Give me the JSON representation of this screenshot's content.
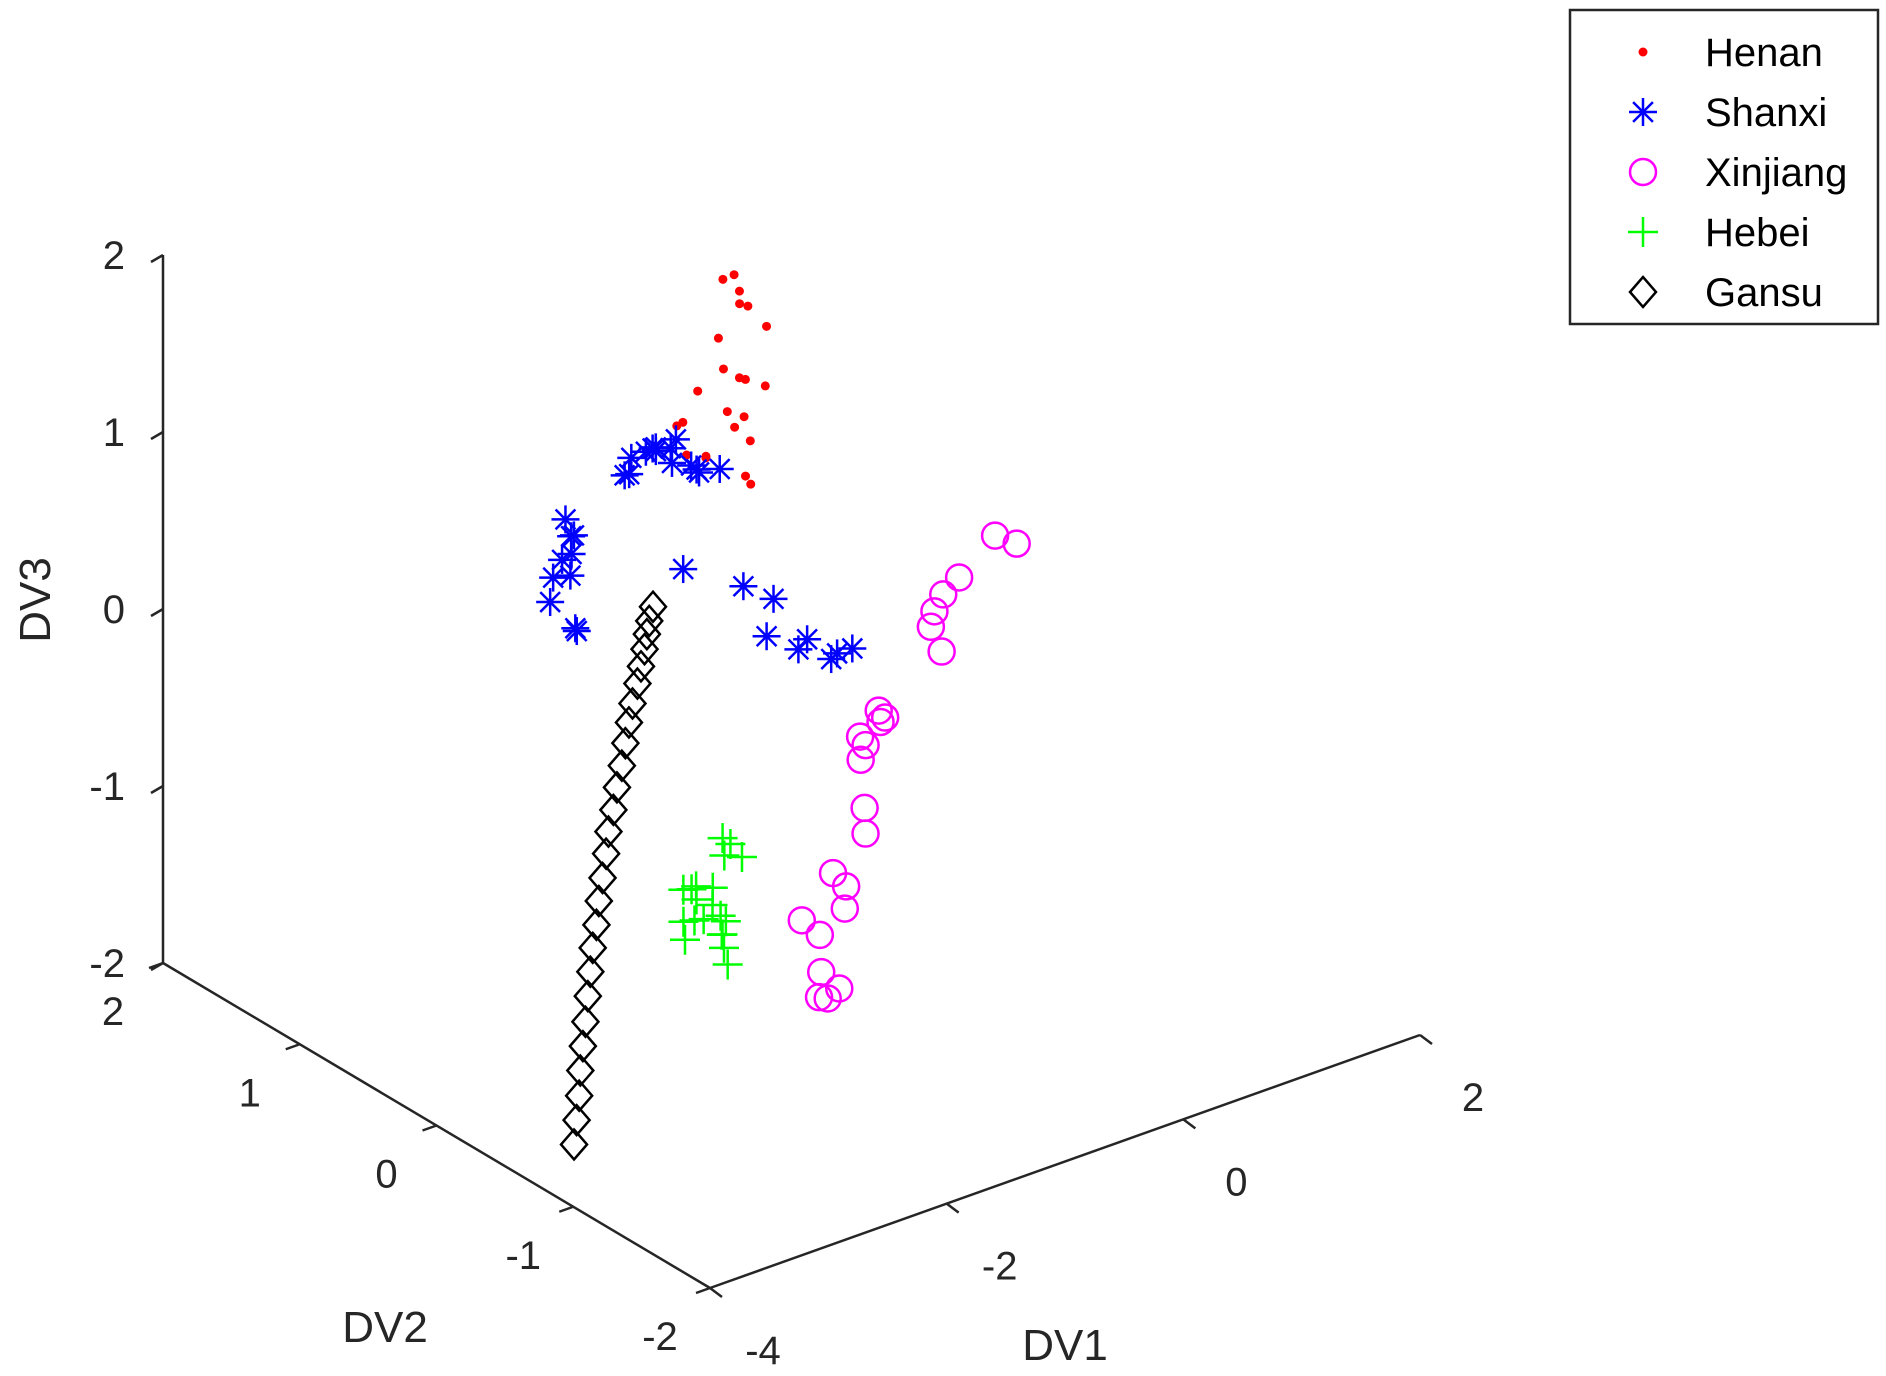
{
  "chart_data": {
    "type": "scatter3d",
    "xlabel": "DV1",
    "ylabel": "DV2",
    "zlabel": "DV3",
    "xlim": [
      -4,
      2
    ],
    "ylim": [
      -2,
      2
    ],
    "zlim": [
      -2,
      2
    ],
    "x_ticks": [
      "-4",
      "-2",
      "0",
      "2"
    ],
    "y_ticks": [
      "-2",
      "-1",
      "0",
      "1",
      "2"
    ],
    "z_ticks": [
      "-2",
      "-1",
      "0",
      "1",
      "2"
    ],
    "grid": false,
    "legend_position": "top-right",
    "series": [
      {
        "name": "Henan",
        "marker": "dot",
        "color": "#ff0000",
        "points": [
          [
            -2.25,
            -0.58,
            2.63
          ],
          [
            -2.11,
            -0.58,
            2.53
          ],
          [
            -2.19,
            -0.65,
            2.51
          ],
          [
            -2.12,
            -0.65,
            2.48
          ],
          [
            -2.17,
            -0.83,
            2.46
          ],
          [
            -2.04,
            -0.48,
            2.56
          ],
          [
            -2.43,
            -0.74,
            2.24
          ],
          [
            -2.23,
            -0.53,
            2.27
          ],
          [
            -2.33,
            -0.77,
            2.18
          ],
          [
            -2.49,
            -0.82,
            2.05
          ],
          [
            -2.36,
            -0.84,
            2.21
          ],
          [
            -2.25,
            -0.89,
            2.17
          ],
          [
            -2.51,
            -0.96,
            2.09
          ],
          [
            -2.59,
            -0.96,
            2.05
          ],
          [
            -2.55,
            -1.04,
            2.0
          ],
          [
            -2.81,
            -1.23,
            1.95
          ],
          [
            -2.87,
            -1.32,
            1.96
          ],
          [
            -2.59,
            -0.69,
            2.13
          ],
          [
            -2.81,
            -0.94,
            1.92
          ],
          [
            -2.79,
            -0.71,
            1.99
          ],
          [
            -2.6,
            -0.59,
            1.91
          ],
          [
            -2.95,
            -0.92,
            1.96
          ],
          [
            -2.89,
            -1.01,
            1.98
          ]
        ]
      },
      {
        "name": "Shanxi",
        "marker": "asterisk",
        "color": "#0000ff",
        "points": [
          [
            -3.44,
            -0.94,
            2.07
          ],
          [
            -3.34,
            -0.96,
            2.09
          ],
          [
            -3.26,
            -0.94,
            2.08
          ],
          [
            -3.13,
            -0.96,
            2.06
          ],
          [
            -3.04,
            -0.92,
            2.07
          ],
          [
            -3.14,
            -0.86,
            2.0
          ],
          [
            -3.06,
            -0.79,
            1.97
          ],
          [
            -3.05,
            -1.04,
            1.98
          ],
          [
            -2.82,
            -1.05,
            1.91
          ],
          [
            -2.96,
            -1.02,
            1.91
          ],
          [
            -3.3,
            -0.77,
            1.86
          ],
          [
            -3.25,
            -0.76,
            1.85
          ],
          [
            -3.05,
            -0.9,
            1.93
          ],
          [
            -2.9,
            -0.95,
            1.88
          ],
          [
            -3.8,
            -0.77,
            1.73
          ],
          [
            -3.81,
            -0.82,
            1.66
          ],
          [
            -3.74,
            -0.78,
            1.63
          ],
          [
            -3.76,
            -0.78,
            1.53
          ],
          [
            -3.69,
            -0.65,
            1.42
          ],
          [
            -3.77,
            -0.78,
            1.41
          ],
          [
            -3.8,
            -0.68,
            1.36
          ],
          [
            -3.86,
            -0.71,
            1.25
          ],
          [
            -3.82,
            -0.87,
            1.15
          ],
          [
            -3.74,
            -0.79,
            1.11
          ],
          [
            -2.99,
            -0.93,
            1.33
          ],
          [
            -2.62,
            -1.05,
            1.2
          ],
          [
            -2.4,
            -1.08,
            1.09
          ],
          [
            -2.47,
            -1.09,
            0.9
          ],
          [
            -2.34,
            -1.21,
            0.85
          ],
          [
            -2.22,
            -1.17,
            0.86
          ],
          [
            -2.19,
            -1.32,
            0.81
          ],
          [
            -2.14,
            -1.32,
            0.83
          ],
          [
            -2.0,
            -1.31,
            0.82
          ]
        ]
      },
      {
        "name": "Xinjiang",
        "marker": "circle",
        "color": "#ff00ff",
        "points": [
          [
            -0.62,
            -1.16,
            1.06
          ],
          [
            -0.53,
            -1.24,
            1.03
          ],
          [
            -0.82,
            -1.07,
            0.83
          ],
          [
            -0.85,
            -0.98,
            0.7
          ],
          [
            -0.89,
            -0.95,
            0.6
          ],
          [
            -0.92,
            -0.95,
            0.52
          ],
          [
            -0.91,
            -1.02,
            0.41
          ],
          [
            -1.26,
            -0.91,
            0.07
          ],
          [
            -1.28,
            -0.88,
            0.1
          ],
          [
            -1.23,
            -0.85,
            0.01
          ],
          [
            -1.31,
            -0.77,
            -0.09
          ],
          [
            -1.31,
            -0.81,
            -0.12
          ],
          [
            -1.34,
            -0.8,
            -0.2
          ],
          [
            -1.48,
            -0.95,
            -0.37
          ],
          [
            -1.53,
            -1.0,
            -0.48
          ],
          [
            -1.77,
            -0.97,
            -0.66
          ],
          [
            -1.74,
            -1.04,
            -0.71
          ],
          [
            -1.74,
            -1.03,
            -0.84
          ],
          [
            -1.87,
            -0.96,
            -0.99
          ],
          [
            -1.93,
            -0.88,
            -0.93
          ],
          [
            -2.02,
            -1.1,
            -1.1
          ],
          [
            -1.96,
            -1.18,
            -1.17
          ],
          [
            -2.0,
            -1.13,
            -1.24
          ],
          [
            -2.05,
            -1.11,
            -1.23
          ]
        ]
      },
      {
        "name": "Hebei",
        "marker": "plus",
        "color": "#00ff00",
        "points": [
          [
            -2.53,
            -0.82,
            -0.35
          ],
          [
            -2.51,
            -0.86,
            -0.37
          ],
          [
            -2.55,
            -0.85,
            -0.43
          ],
          [
            -2.47,
            -0.91,
            -0.43
          ],
          [
            -2.85,
            -0.87,
            -0.54
          ],
          [
            -2.8,
            -0.86,
            -0.54
          ],
          [
            -2.85,
            -0.81,
            -0.57
          ],
          [
            -2.74,
            -0.93,
            -0.53
          ],
          [
            -2.82,
            -0.88,
            -0.6
          ],
          [
            -2.8,
            -0.98,
            -0.59
          ],
          [
            -2.93,
            -0.88,
            -0.7
          ],
          [
            -2.86,
            -0.9,
            -0.7
          ],
          [
            -2.94,
            -0.9,
            -0.79
          ],
          [
            -2.69,
            -0.82,
            -0.77
          ],
          [
            -2.56,
            -0.87,
            -0.79
          ],
          [
            -2.57,
            -0.84,
            -0.77
          ],
          [
            -2.6,
            -0.88,
            -0.85
          ],
          [
            -2.56,
            -0.84,
            -0.88
          ],
          [
            -2.51,
            -0.84,
            -1.06
          ],
          [
            -2.68,
            -0.96,
            -0.87
          ]
        ]
      },
      {
        "name": "Gansu",
        "marker": "diamond",
        "color": "#000000",
        "points": [
          [
            -3.28,
            -0.96,
            1.2
          ],
          [
            -3.3,
            -0.95,
            1.12
          ],
          [
            -3.32,
            -0.95,
            1.05
          ],
          [
            -3.34,
            -0.95,
            0.97
          ],
          [
            -3.37,
            -0.95,
            0.88
          ],
          [
            -3.4,
            -0.95,
            0.79
          ],
          [
            -3.43,
            -0.94,
            0.68
          ],
          [
            -3.46,
            -0.94,
            0.58
          ],
          [
            -3.49,
            -0.94,
            0.47
          ],
          [
            -3.52,
            -0.94,
            0.35
          ],
          [
            -3.55,
            -0.93,
            0.23
          ],
          [
            -3.58,
            -0.93,
            0.11
          ],
          [
            -3.61,
            -0.92,
            -0.01
          ],
          [
            -3.63,
            -0.92,
            -0.13
          ],
          [
            -3.66,
            -0.92,
            -0.26
          ],
          [
            -3.68,
            -0.91,
            -0.39
          ],
          [
            -3.7,
            -0.91,
            -0.52
          ],
          [
            -3.72,
            -0.9,
            -0.65
          ],
          [
            -3.74,
            -0.9,
            -0.78
          ],
          [
            -3.75,
            -0.89,
            -0.92
          ],
          [
            -3.77,
            -0.89,
            -1.06
          ],
          [
            -3.78,
            -0.88,
            -1.2
          ],
          [
            -3.79,
            -0.87,
            -1.34
          ],
          [
            -3.8,
            -0.87,
            -1.48
          ],
          [
            -3.81,
            -0.86,
            -1.62
          ],
          [
            -3.82,
            -0.85,
            -1.76
          ]
        ]
      }
    ]
  }
}
